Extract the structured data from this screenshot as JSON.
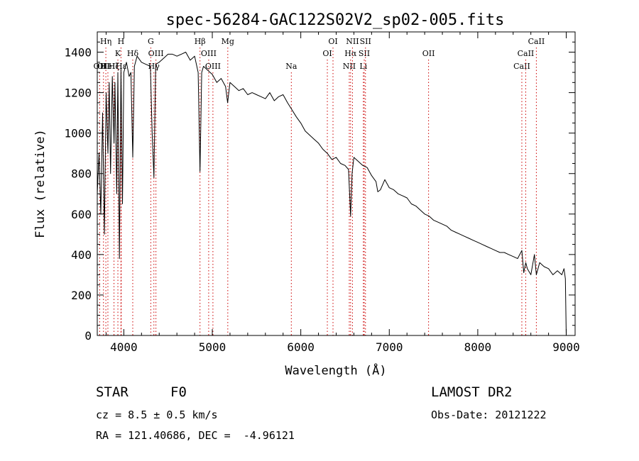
{
  "chart_data": {
    "type": "line",
    "title": "spec-56284-GAC122S02V2_sp02-005.fits",
    "xlabel": "Wavelength (Å)",
    "ylabel": "Flux (relative)",
    "xlim": [
      3700,
      9100
    ],
    "ylim": [
      0,
      1500
    ],
    "xticks": [
      4000,
      5000,
      6000,
      7000,
      8000,
      9000
    ],
    "yticks": [
      0,
      200,
      400,
      600,
      800,
      1000,
      1200,
      1400
    ],
    "grid": false,
    "series": [
      {
        "color": "#000000",
        "x": [
          3700,
          3720,
          3740,
          3760,
          3780,
          3800,
          3820,
          3835,
          3850,
          3870,
          3889,
          3900,
          3920,
          3933,
          3950,
          3968,
          3985,
          4000,
          4030,
          4060,
          4080,
          4101,
          4120,
          4150,
          4200,
          4250,
          4300,
          4320,
          4340,
          4360,
          4400,
          4450,
          4500,
          4550,
          4600,
          4650,
          4700,
          4750,
          4800,
          4840,
          4861,
          4880,
          4900,
          4950,
          5000,
          5050,
          5100,
          5150,
          5173,
          5200,
          5250,
          5300,
          5350,
          5400,
          5450,
          5500,
          5550,
          5600,
          5650,
          5700,
          5750,
          5800,
          5850,
          5893,
          5950,
          6000,
          6050,
          6100,
          6150,
          6200,
          6250,
          6300,
          6350,
          6400,
          6450,
          6500,
          6540,
          6563,
          6580,
          6600,
          6650,
          6700,
          6750,
          6800,
          6850,
          6870,
          6900,
          6950,
          7000,
          7050,
          7100,
          7150,
          7200,
          7250,
          7300,
          7350,
          7400,
          7450,
          7500,
          7550,
          7600,
          7650,
          7700,
          7750,
          7800,
          7850,
          7900,
          7950,
          8000,
          8050,
          8100,
          8150,
          8200,
          8250,
          8300,
          8350,
          8400,
          8450,
          8498,
          8520,
          8542,
          8560,
          8600,
          8640,
          8662,
          8700,
          8750,
          8800,
          8850,
          8900,
          8950,
          8975,
          8990,
          9000
        ],
        "y": [
          700,
          900,
          600,
          1100,
          500,
          1200,
          900,
          1250,
          800,
          1280,
          950,
          1250,
          700,
          1300,
          380,
          1320,
          650,
          1300,
          1350,
          1280,
          1300,
          880,
          1330,
          1380,
          1350,
          1340,
          1330,
          1000,
          780,
          1340,
          1350,
          1370,
          1390,
          1390,
          1380,
          1390,
          1400,
          1360,
          1380,
          1300,
          810,
          1300,
          1330,
          1310,
          1290,
          1250,
          1270,
          1230,
          1150,
          1250,
          1230,
          1210,
          1220,
          1190,
          1200,
          1190,
          1180,
          1170,
          1200,
          1160,
          1180,
          1190,
          1150,
          1120,
          1080,
          1050,
          1010,
          990,
          970,
          950,
          920,
          900,
          870,
          880,
          850,
          840,
          820,
          590,
          800,
          880,
          860,
          840,
          830,
          790,
          760,
          710,
          720,
          770,
          730,
          720,
          700,
          690,
          680,
          650,
          640,
          620,
          600,
          590,
          570,
          560,
          550,
          540,
          520,
          510,
          500,
          490,
          480,
          470,
          460,
          450,
          440,
          430,
          420,
          410,
          410,
          400,
          390,
          380,
          420,
          310,
          360,
          330,
          300,
          400,
          300,
          360,
          340,
          330,
          300,
          320,
          300,
          330,
          280,
          0
        ]
      }
    ],
    "lines": [
      {
        "wavelength": 3727,
        "label": "OII",
        "row": 3
      },
      {
        "wavelength": 3770,
        "label": "OII",
        "row": 3
      },
      {
        "wavelength": 3797,
        "label": "Hη",
        "row": 1
      },
      {
        "wavelength": 3820,
        "label": "HeI",
        "row": 3
      },
      {
        "wavelength": 3889,
        "label": "Hζ",
        "row": 3
      },
      {
        "wavelength": 3933,
        "label": "K",
        "row": 2
      },
      {
        "wavelength": 3968,
        "label": "H",
        "row": 1
      },
      {
        "wavelength": 3970,
        "label": "Hε",
        "row": 3
      },
      {
        "wavelength": 4101,
        "label": "Hδ",
        "row": 2
      },
      {
        "wavelength": 4305,
        "label": "G",
        "row": 1
      },
      {
        "wavelength": 4340,
        "label": "Hγ",
        "row": 3
      },
      {
        "wavelength": 4363,
        "label": "OIII",
        "row": 2
      },
      {
        "wavelength": 4861,
        "label": "Hβ",
        "row": 1
      },
      {
        "wavelength": 4959,
        "label": "OIII",
        "row": 2
      },
      {
        "wavelength": 5007,
        "label": "OIII",
        "row": 3
      },
      {
        "wavelength": 5175,
        "label": "Mg",
        "row": 1
      },
      {
        "wavelength": 5893,
        "label": "Na",
        "row": 3
      },
      {
        "wavelength": 6300,
        "label": "OI",
        "row": 2
      },
      {
        "wavelength": 6364,
        "label": "OI",
        "row": 1
      },
      {
        "wavelength": 6548,
        "label": "NII",
        "row": 3
      },
      {
        "wavelength": 6563,
        "label": "Hα",
        "row": 2
      },
      {
        "wavelength": 6584,
        "label": "NII",
        "row": 1
      },
      {
        "wavelength": 6707,
        "label": "Li",
        "row": 3
      },
      {
        "wavelength": 6717,
        "label": "SII",
        "row": 2
      },
      {
        "wavelength": 6731,
        "label": "SII",
        "row": 1
      },
      {
        "wavelength": 7444,
        "label": "OII",
        "row": 2
      },
      {
        "wavelength": 8498,
        "label": "CaII",
        "row": 3
      },
      {
        "wavelength": 8542,
        "label": "CaII",
        "row": 2
      },
      {
        "wavelength": 8662,
        "label": "CaII",
        "row": 1
      }
    ]
  },
  "info": {
    "object_class": "STAR",
    "subclass": "F0",
    "survey": "LAMOST DR2",
    "cz": "cz = 8.5 ± 0.5 km/s",
    "obs_date": "Obs-Date: 20121222",
    "radec": "RA = 121.40686, DEC =  -4.96121"
  },
  "colors": {
    "spectrum": "#000000",
    "line_markers": "#cc0000"
  }
}
